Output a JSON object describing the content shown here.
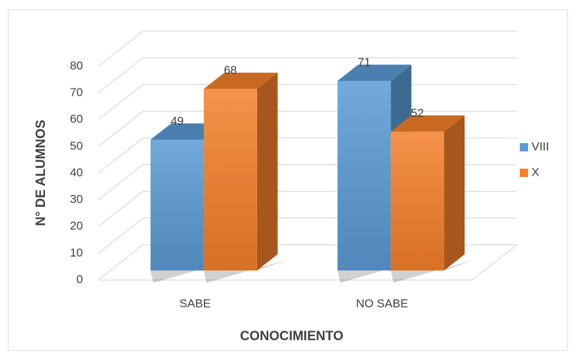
{
  "chart_data": {
    "type": "bar3d",
    "categories": [
      "SABE",
      "NO SABE"
    ],
    "series": [
      {
        "name": "VIII",
        "color": "#5b9bd5",
        "values": [
          49,
          71
        ]
      },
      {
        "name": "X",
        "color": "#f5802a",
        "values": [
          68,
          52
        ]
      }
    ],
    "ylim": [
      0,
      80
    ],
    "yticks": [
      0,
      10,
      20,
      30,
      40,
      50,
      60,
      70,
      80
    ],
    "y_label": "N° DE ALUMNOS",
    "x_label": "CONOCIMIENTO",
    "grid": true,
    "legend": "right",
    "data_labels": true
  }
}
